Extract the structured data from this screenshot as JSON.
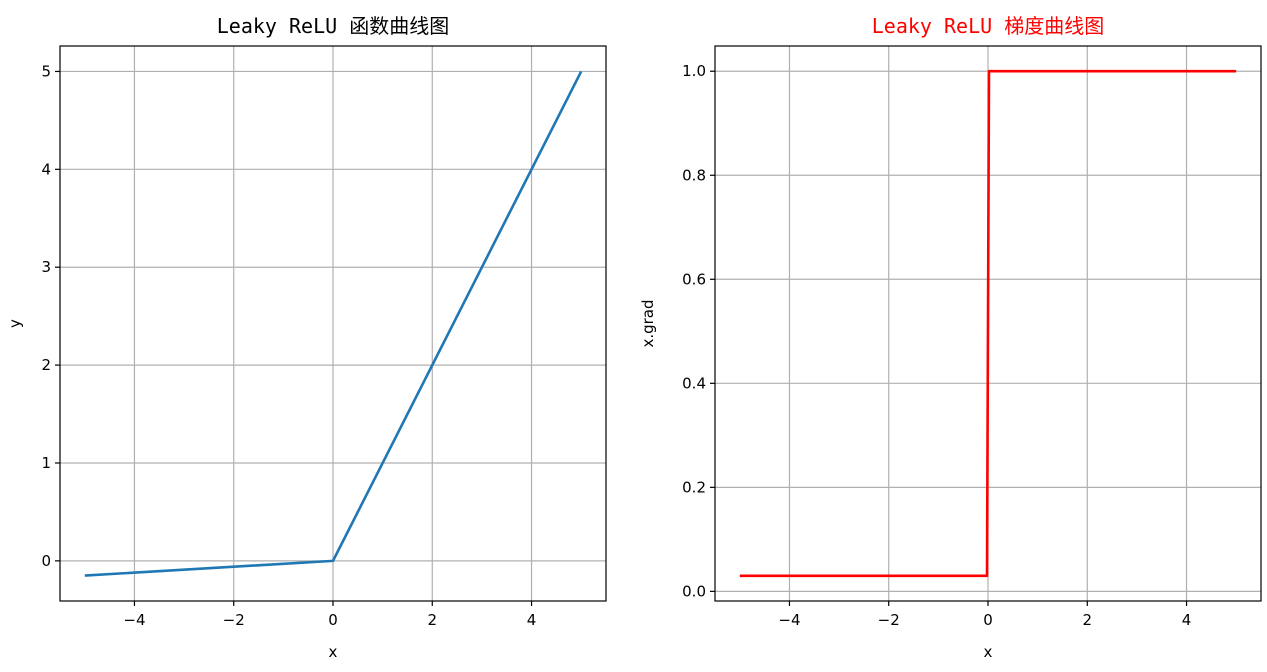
{
  "chart_data": [
    {
      "type": "line",
      "title": "Leaky ReLU 函数曲线图",
      "title_color": "#000000",
      "xlabel": "x",
      "ylabel": "y",
      "xlim": [
        -5.5,
        5.5
      ],
      "ylim": [
        -0.41,
        5.26
      ],
      "xticks": [
        -4,
        -2,
        0,
        2,
        4
      ],
      "xtick_labels": [
        "−4",
        "−2",
        "0",
        "2",
        "4"
      ],
      "yticks": [
        0,
        1,
        2,
        3,
        4,
        5
      ],
      "ytick_labels": [
        "0",
        "1",
        "2",
        "3",
        "4",
        "5"
      ],
      "grid": true,
      "series": [
        {
          "color": "#1f77b4",
          "x": [
            -5,
            0,
            5
          ],
          "y": [
            -0.15,
            0,
            5
          ]
        }
      ]
    },
    {
      "type": "line",
      "title": "Leaky ReLU 梯度曲线图",
      "title_color": "#ff0000",
      "xlabel": "x",
      "ylabel": "x.grad",
      "xlim": [
        -5.5,
        5.5
      ],
      "ylim": [
        -0.0185,
        1.0485
      ],
      "xticks": [
        -4,
        -2,
        0,
        2,
        4
      ],
      "xtick_labels": [
        "−4",
        "−2",
        "0",
        "2",
        "4"
      ],
      "yticks": [
        0.0,
        0.2,
        0.4,
        0.6,
        0.8,
        1.0
      ],
      "ytick_labels": [
        "0.0",
        "0.2",
        "0.4",
        "0.6",
        "0.8",
        "1.0"
      ],
      "grid": true,
      "series": [
        {
          "color": "#ff0000",
          "x": [
            -5,
            -0.02,
            0.02,
            5
          ],
          "y": [
            0.03,
            0.03,
            1.0,
            1.0
          ]
        }
      ]
    }
  ]
}
